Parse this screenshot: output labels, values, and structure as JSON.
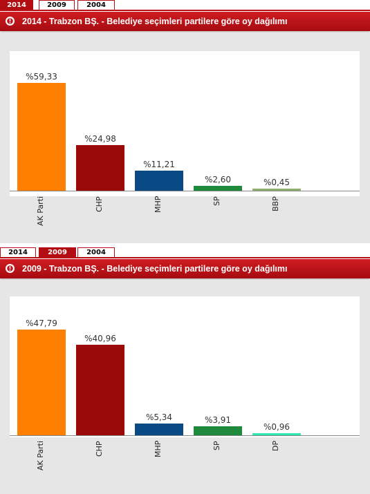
{
  "panels": [
    {
      "tabs": [
        {
          "label": "2014",
          "active": true
        },
        {
          "label": "2009",
          "active": false
        },
        {
          "label": "2004",
          "active": false
        }
      ],
      "title": "2014 - Trabzon BŞ. - Belediye seçimleri partilere göre oy dağılımı",
      "chart_data": {
        "type": "bar",
        "categories": [
          "AK Parti",
          "CHP",
          "MHP",
          "SP",
          "BBP"
        ],
        "values": [
          59.33,
          24.98,
          11.21,
          2.6,
          0.45
        ],
        "labels": [
          "%59,33",
          "%24,98",
          "%11,21",
          "%2,60",
          "%0,45"
        ],
        "colors": [
          "#ff7f00",
          "#9b0a0a",
          "#0a4a84",
          "#1f8a3c",
          "#8fae6e"
        ],
        "ylim": [
          0,
          59.33
        ]
      }
    },
    {
      "tabs": [
        {
          "label": "2014",
          "active": false
        },
        {
          "label": "2009",
          "active": true
        },
        {
          "label": "2004",
          "active": false
        }
      ],
      "title": "2009 - Trabzon BŞ. - Belediye seçimleri partilere göre oy dağılımı",
      "chart_data": {
        "type": "bar",
        "categories": [
          "AK Parti",
          "CHP",
          "MHP",
          "SP",
          "DP"
        ],
        "values": [
          47.79,
          40.96,
          5.34,
          3.91,
          0.96
        ],
        "labels": [
          "%47,79",
          "%40,96",
          "%5,34",
          "%3,91",
          "%0,96"
        ],
        "colors": [
          "#ff7f00",
          "#9b0a0a",
          "#0a4a84",
          "#1f8a3c",
          "#2ee8b4"
        ],
        "ylim": [
          0,
          47.79
        ]
      }
    }
  ]
}
